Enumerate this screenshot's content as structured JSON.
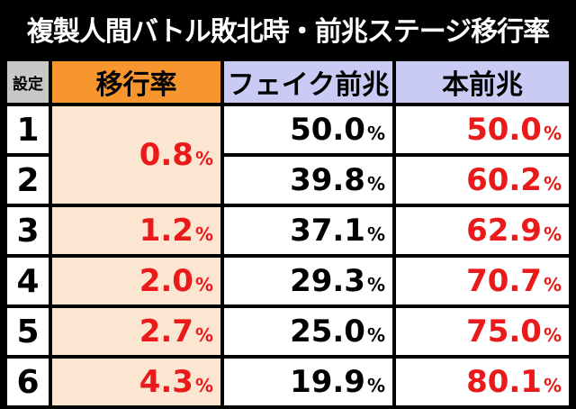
{
  "title": "複製人間バトル敗北時・前兆ステージ移行率",
  "headers": {
    "setting": "設定",
    "rate": "移行率",
    "fake": "フェイク前兆",
    "real": "本前兆"
  },
  "percent_sign": "%",
  "rows": [
    {
      "setting": "1",
      "rate": "0.8",
      "fake": "50.0",
      "real": "50.0"
    },
    {
      "setting": "2",
      "rate": "0.8",
      "fake": "39.8",
      "real": "60.2"
    },
    {
      "setting": "3",
      "rate": "1.2",
      "fake": "37.1",
      "real": "62.9"
    },
    {
      "setting": "4",
      "rate": "2.0",
      "fake": "29.3",
      "real": "70.7"
    },
    {
      "setting": "5",
      "rate": "2.7",
      "fake": "25.0",
      "real": "75.0"
    },
    {
      "setting": "6",
      "rate": "4.3",
      "fake": "19.9",
      "real": "80.1"
    }
  ],
  "colors": {
    "background": "#000000",
    "header_rate": "#f7962f",
    "header_fake_real": "#c9cbf5",
    "header_setting": "#c8c8c8",
    "rate_cell": "#fbe6d2",
    "accent_red": "#ea1a1a"
  }
}
